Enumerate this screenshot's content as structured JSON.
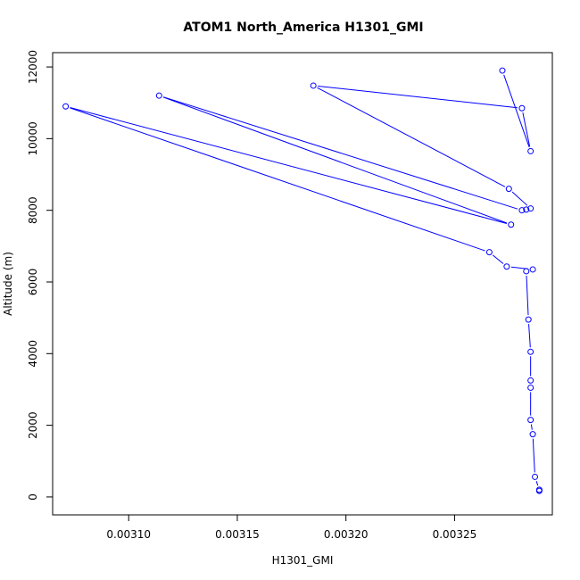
{
  "chart_data": {
    "type": "line",
    "title": "ATOM1 North_America H1301_GMI",
    "xlabel": "H1301_GMI",
    "ylabel": "Altitude (m)",
    "xlim": [
      0.003065,
      0.003295
    ],
    "ylim": [
      -500,
      12400
    ],
    "x_ticks": [
      0.0031,
      0.00315,
      0.0032,
      0.00325
    ],
    "x_tick_labels": [
      "0.00310",
      "0.00315",
      "0.00320",
      "0.00325"
    ],
    "y_ticks": [
      0,
      2000,
      4000,
      6000,
      8000,
      10000,
      12000
    ],
    "y_tick_labels": [
      "0",
      "2000",
      "4000",
      "6000",
      "8000",
      "10000",
      "12000"
    ],
    "grid": false,
    "series": [
      {
        "color": "#0000ff",
        "marker": "open-circle",
        "points": [
          {
            "x": 0.003289,
            "y": 170
          },
          {
            "x": 0.003289,
            "y": 200
          },
          {
            "x": 0.003287,
            "y": 560
          },
          {
            "x": 0.003286,
            "y": 1750
          },
          {
            "x": 0.003285,
            "y": 2150
          },
          {
            "x": 0.003285,
            "y": 3050
          },
          {
            "x": 0.003285,
            "y": 3250
          },
          {
            "x": 0.003285,
            "y": 4050
          },
          {
            "x": 0.003284,
            "y": 4950
          },
          {
            "x": 0.003283,
            "y": 6300
          },
          {
            "x": 0.003286,
            "y": 6350
          },
          {
            "x": 0.003274,
            "y": 6430
          },
          {
            "x": 0.003266,
            "y": 6830
          },
          {
            "x": 0.003071,
            "y": 10900
          },
          {
            "x": 0.003276,
            "y": 7600
          },
          {
            "x": 0.003114,
            "y": 11200
          },
          {
            "x": 0.003281,
            "y": 8000
          },
          {
            "x": 0.003283,
            "y": 8020
          },
          {
            "x": 0.003285,
            "y": 8050
          },
          {
            "x": 0.003275,
            "y": 8600
          },
          {
            "x": 0.003185,
            "y": 11480
          },
          {
            "x": 0.003281,
            "y": 10850
          },
          {
            "x": 0.003285,
            "y": 9650
          },
          {
            "x": 0.003272,
            "y": 11900
          }
        ]
      }
    ]
  }
}
